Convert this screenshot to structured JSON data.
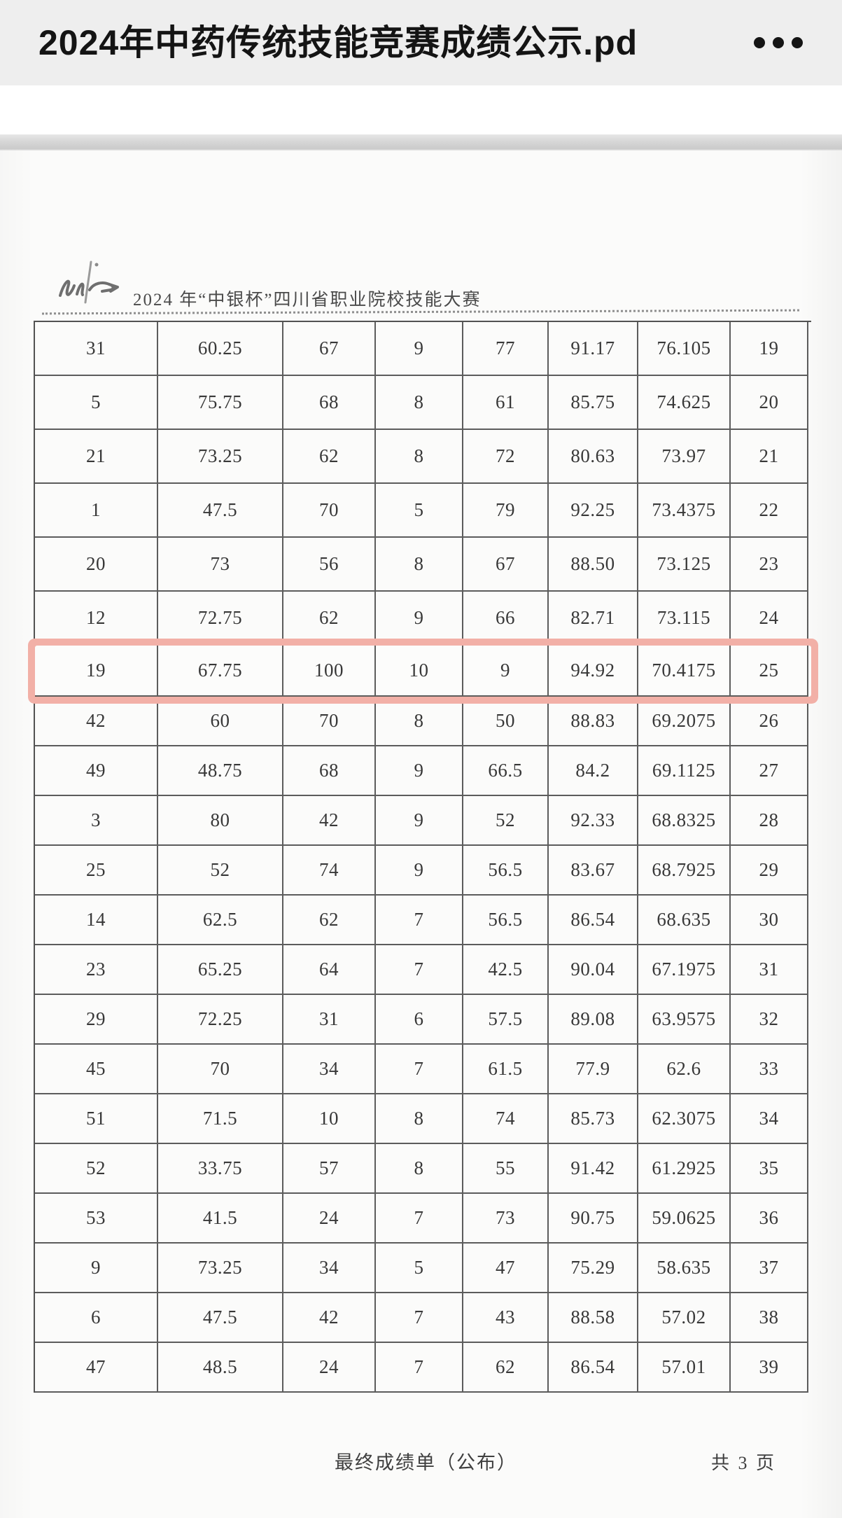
{
  "titlebar": {
    "title": "2024年中药传统技能竞赛成绩公示.pd",
    "more_menu_icon": "more-dots-icon"
  },
  "page": {
    "header": {
      "logo_icon": "calligraphy-signature-logo",
      "competition_title": "2024 年“中银杯”四川省职业院校技能大赛"
    },
    "table": {
      "columns_visible": 8,
      "highlighted_row_index": 6,
      "rows": [
        [
          "31",
          "60.25",
          "67",
          "9",
          "77",
          "91.17",
          "76.105",
          "19"
        ],
        [
          "5",
          "75.75",
          "68",
          "8",
          "61",
          "85.75",
          "74.625",
          "20"
        ],
        [
          "21",
          "73.25",
          "62",
          "8",
          "72",
          "80.63",
          "73.97",
          "21"
        ],
        [
          "1",
          "47.5",
          "70",
          "5",
          "79",
          "92.25",
          "73.4375",
          "22"
        ],
        [
          "20",
          "73",
          "56",
          "8",
          "67",
          "88.50",
          "73.125",
          "23"
        ],
        [
          "12",
          "72.75",
          "62",
          "9",
          "66",
          "82.71",
          "73.115",
          "24"
        ],
        [
          "19",
          "67.75",
          "100",
          "10",
          "9",
          "94.92",
          "70.4175",
          "25"
        ],
        [
          "42",
          "60",
          "70",
          "8",
          "50",
          "88.83",
          "69.2075",
          "26"
        ],
        [
          "49",
          "48.75",
          "68",
          "9",
          "66.5",
          "84.2",
          "69.1125",
          "27"
        ],
        [
          "3",
          "80",
          "42",
          "9",
          "52",
          "92.33",
          "68.8325",
          "28"
        ],
        [
          "25",
          "52",
          "74",
          "9",
          "56.5",
          "83.67",
          "68.7925",
          "29"
        ],
        [
          "14",
          "62.5",
          "62",
          "7",
          "56.5",
          "86.54",
          "68.635",
          "30"
        ],
        [
          "23",
          "65.25",
          "64",
          "7",
          "42.5",
          "90.04",
          "67.1975",
          "31"
        ],
        [
          "29",
          "72.25",
          "31",
          "6",
          "57.5",
          "89.08",
          "63.9575",
          "32"
        ],
        [
          "45",
          "70",
          "34",
          "7",
          "61.5",
          "77.9",
          "62.6",
          "33"
        ],
        [
          "51",
          "71.5",
          "10",
          "8",
          "74",
          "85.73",
          "62.3075",
          "34"
        ],
        [
          "52",
          "33.75",
          "57",
          "8",
          "55",
          "91.42",
          "61.2925",
          "35"
        ],
        [
          "53",
          "41.5",
          "24",
          "7",
          "73",
          "90.75",
          "59.0625",
          "36"
        ],
        [
          "9",
          "73.25",
          "34",
          "5",
          "47",
          "75.29",
          "58.635",
          "37"
        ],
        [
          "6",
          "47.5",
          "42",
          "7",
          "43",
          "88.58",
          "57.02",
          "38"
        ],
        [
          "47",
          "48.5",
          "24",
          "7",
          "62",
          "86.54",
          "57.01",
          "39"
        ]
      ]
    },
    "footer": {
      "center_text": "最终成绩单（公布）",
      "right_text": "共 3 页"
    }
  },
  "colors": {
    "highlight_border": "#f2b0a7",
    "titlebar_bg": "#eeeeee",
    "separator_band": "#d2d2d2",
    "table_line": "#343434"
  }
}
